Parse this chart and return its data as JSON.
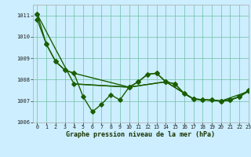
{
  "title": "Graphe pression niveau de la mer (hPa)",
  "xlim": [
    -0.5,
    23
  ],
  "ylim": [
    1006.0,
    1011.5
  ],
  "yticks": [
    1006,
    1007,
    1008,
    1009,
    1010,
    1011
  ],
  "xticks": [
    0,
    1,
    2,
    3,
    4,
    5,
    6,
    7,
    8,
    9,
    10,
    11,
    12,
    13,
    14,
    15,
    16,
    17,
    18,
    19,
    20,
    21,
    22,
    23
  ],
  "background_color": "#cceeff",
  "line_color": "#1a5e00",
  "grid_color": "#66bb99",
  "line1_x": [
    0,
    1,
    2,
    3,
    4,
    5,
    6,
    7,
    8,
    9,
    10,
    11,
    12,
    13,
    14,
    15,
    16,
    17,
    18,
    19,
    20,
    21,
    22,
    23
  ],
  "line1_y": [
    1010.8,
    1009.65,
    1008.85,
    1008.45,
    1008.3,
    1007.2,
    1006.5,
    1006.85,
    1007.3,
    1007.05,
    1007.65,
    1007.9,
    1008.25,
    1008.3,
    1007.9,
    1007.8,
    1007.35,
    1007.1,
    1007.05,
    1007.05,
    1007.0,
    1007.05,
    1007.2,
    1007.5
  ],
  "line2_x": [
    0,
    1,
    2,
    3,
    4,
    10,
    11,
    12,
    13,
    14,
    15,
    16,
    17,
    18,
    19,
    20,
    21,
    22,
    23
  ],
  "line2_y": [
    1011.05,
    1009.65,
    1008.85,
    1008.45,
    1008.3,
    1007.65,
    1007.9,
    1008.25,
    1008.3,
    1007.9,
    1007.8,
    1007.35,
    1007.1,
    1007.05,
    1007.05,
    1007.0,
    1007.05,
    1007.2,
    1007.5
  ],
  "line3_x": [
    0,
    4,
    10,
    14,
    17,
    20,
    21,
    22,
    23
  ],
  "line3_y": [
    1011.05,
    1007.8,
    1007.65,
    1007.9,
    1007.1,
    1007.0,
    1007.05,
    1007.2,
    1007.45
  ],
  "line4_x": [
    4,
    10,
    14,
    17,
    20,
    23
  ],
  "line4_y": [
    1007.8,
    1007.65,
    1007.9,
    1007.1,
    1007.0,
    1007.45
  ]
}
